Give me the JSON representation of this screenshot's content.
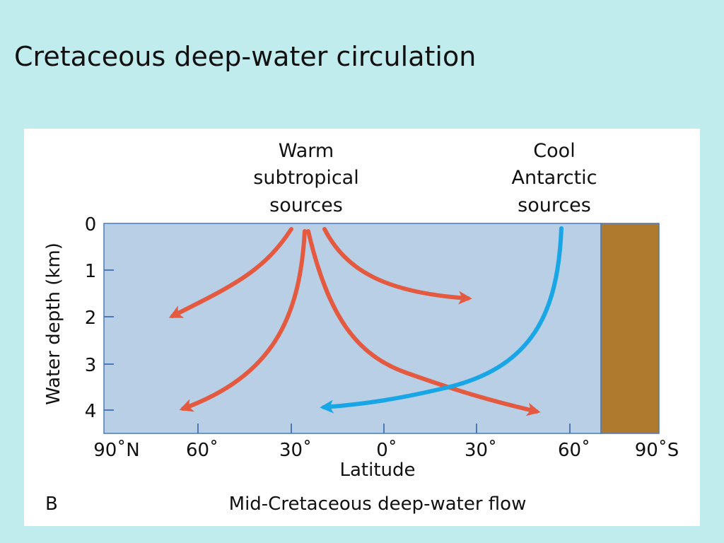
{
  "slide": {
    "title": "Cretaceous deep-water circulation"
  },
  "figure": {
    "panel_letter": "B",
    "caption": "Mid-Cretaceous deep-water flow",
    "source_labels": {
      "warm": [
        "Warm",
        "subtropical",
        "sources"
      ],
      "cool": [
        "Cool",
        "Antarctic",
        "sources"
      ]
    },
    "y_axis": {
      "label": "Water depth (km)",
      "ticks": [
        "0",
        "1",
        "2",
        "3",
        "4"
      ]
    },
    "x_axis": {
      "label": "Latitude",
      "ticks": [
        "90˚N",
        "60˚",
        "30˚",
        "0˚",
        "30˚",
        "60˚",
        "90˚S"
      ]
    },
    "colors": {
      "ocean": "#b8cfe6",
      "continent": "#b07a2e",
      "warm_flow": "#e45a40",
      "cool_flow": "#19a6e6",
      "slide_background": "#c1ecee"
    }
  }
}
